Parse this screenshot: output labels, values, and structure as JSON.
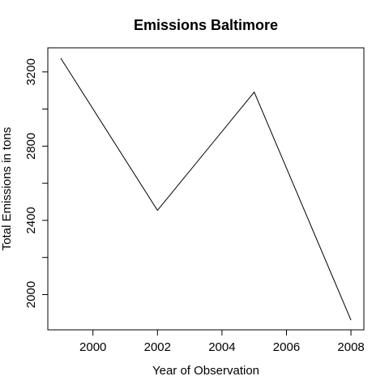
{
  "chart_data": {
    "type": "line",
    "title": "Emissions Baltimore",
    "xlabel": "Year of Observation",
    "ylabel": "Total Emissions in tons",
    "x": [
      1999,
      2002,
      2005,
      2008
    ],
    "series": [
      {
        "values": [
          3274.18,
          2453.92,
          3091.35,
          1862.28
        ]
      }
    ],
    "xlim": [
      1998.6,
      2008.4
    ],
    "ylim": [
      1810,
      3330
    ],
    "x_ticks": [
      2000,
      2002,
      2004,
      2006,
      2008
    ],
    "x_tick_labels": [
      "2000",
      "2002",
      "2004",
      "2006",
      "2008"
    ],
    "y_ticks": [
      2000,
      2200,
      2400,
      2600,
      2800,
      3000,
      3200
    ],
    "y_tick_labels": [
      "2000",
      "",
      "2400",
      "",
      "2800",
      "",
      "3200"
    ],
    "grid": false,
    "line_color": "#000000"
  }
}
